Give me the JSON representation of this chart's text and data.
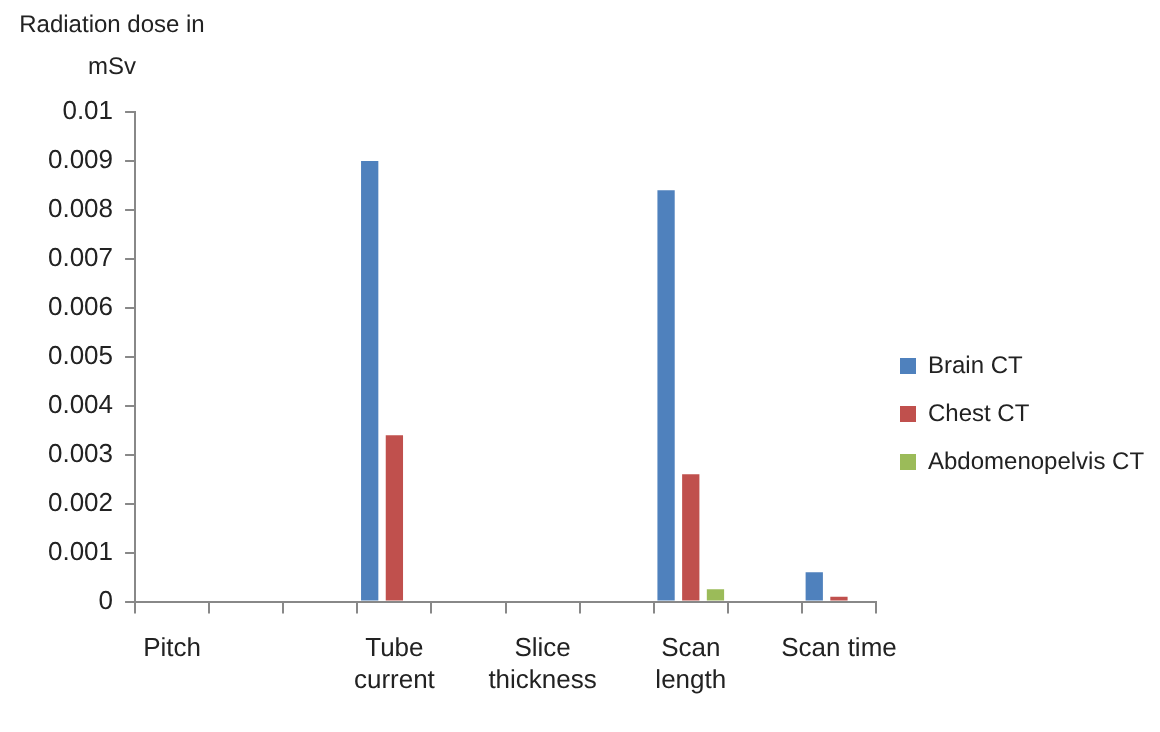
{
  "chart_data": {
    "type": "bar",
    "ylabel": "Radiation dose in mSv",
    "categories": [
      "Pitch",
      null,
      null,
      "Tube current",
      null,
      "Slice thickness",
      null,
      "Scan length",
      null,
      "Scan time"
    ],
    "series": [
      {
        "name": "Brain CT",
        "color": "#4f81bd",
        "values": [
          null,
          null,
          null,
          0.009,
          null,
          null,
          null,
          0.0084,
          null,
          0.0006
        ]
      },
      {
        "name": "Chest CT",
        "color": "#c0504d",
        "values": [
          null,
          null,
          null,
          0.0034,
          null,
          null,
          null,
          0.0026,
          null,
          0.0001
        ]
      },
      {
        "name": "Abdomenopelvis CT",
        "color": "#9bbb59",
        "values": [
          null,
          null,
          null,
          null,
          null,
          null,
          null,
          0.00025,
          null,
          null
        ]
      }
    ],
    "ylim": [
      0,
      0.01
    ],
    "yticks": [
      0,
      0.001,
      0.002,
      0.003,
      0.004,
      0.005,
      0.006,
      0.007,
      0.008,
      0.009,
      0.01
    ],
    "grid": false,
    "legend": "right"
  }
}
